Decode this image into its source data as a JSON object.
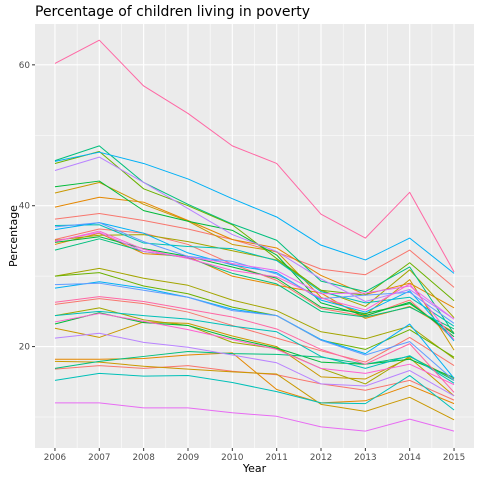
{
  "chart_data": {
    "type": "line",
    "title": "Percentage of children living in poverty",
    "xlabel": "Year",
    "ylabel": "Percentage",
    "x": [
      2006,
      2007,
      2008,
      2009,
      2010,
      2011,
      2012,
      2013,
      2014,
      2015
    ],
    "x_ticks": [
      "2006",
      "2007",
      "2008",
      "2009",
      "2010",
      "2011",
      "2012",
      "2013",
      "2014",
      "2015"
    ],
    "y_ticks": [
      "20",
      "40",
      "60"
    ],
    "y_tick_values": [
      20,
      40,
      60
    ],
    "ylim": [
      5.6,
      65.8
    ],
    "xlim": [
      2005.55,
      2015.45
    ],
    "grid": true,
    "background": "#ebebeb",
    "grid_color": "#ffffff",
    "series": [
      {
        "color": "#f8766d",
        "values": [
          38.1,
          38.9,
          37.9,
          36.7,
          35.2,
          33.4,
          31.0,
          30.2,
          33.7,
          28.4
        ]
      },
      {
        "color": "#f8766d",
        "values": [
          35.2,
          36.7,
          36.1,
          34.5,
          31.7,
          29.4,
          25.4,
          24.3,
          26.6,
          21.0
        ]
      },
      {
        "color": "#f8766d",
        "values": [
          26.0,
          26.8,
          26.1,
          24.9,
          23.0,
          21.2,
          19.4,
          17.8,
          21.3,
          17.3
        ]
      },
      {
        "color": "#f8766d",
        "values": [
          16.8,
          17.3,
          16.9,
          17.3,
          16.5,
          16.0,
          14.7,
          13.8,
          15.2,
          12.4
        ]
      },
      {
        "color": "#e58700",
        "values": [
          39.8,
          41.2,
          40.5,
          37.9,
          35.2,
          34.0,
          30.1,
          27.4,
          29.0,
          25.5
        ]
      },
      {
        "color": "#e58700",
        "values": [
          34.5,
          36.1,
          33.2,
          32.8,
          30.0,
          28.7,
          27.6,
          24.0,
          25.7,
          22.0
        ]
      },
      {
        "color": "#e58700",
        "values": [
          18.2,
          18.2,
          18.3,
          18.8,
          19.1,
          13.9,
          12.0,
          12.3,
          14.5,
          11.9
        ]
      },
      {
        "color": "#c99800",
        "values": [
          41.8,
          43.3,
          40.2,
          37.8,
          34.5,
          33.5,
          27.0,
          24.5,
          29.5,
          19.5
        ]
      },
      {
        "color": "#c99800",
        "values": [
          22.6,
          21.3,
          23.5,
          23.3,
          21.5,
          20.0,
          15.7,
          15.4,
          18.4,
          13.0
        ]
      },
      {
        "color": "#c99800",
        "values": [
          17.9,
          17.8,
          17.2,
          16.8,
          16.4,
          16.1,
          11.8,
          10.8,
          12.8,
          9.6
        ]
      },
      {
        "color": "#a3a500",
        "values": [
          35.1,
          35.8,
          35.9,
          34.9,
          33.6,
          32.3,
          28.0,
          25.7,
          30.9,
          24.1
        ]
      },
      {
        "color": "#a3a500",
        "values": [
          30.0,
          31.1,
          29.7,
          28.7,
          26.6,
          25.1,
          22.1,
          21.1,
          22.9,
          18.3
        ]
      },
      {
        "color": "#a3a500",
        "values": [
          24.4,
          25.5,
          23.8,
          23.0,
          20.6,
          19.7,
          16.9,
          14.7,
          18.6,
          15.4
        ]
      },
      {
        "color": "#6bb100",
        "values": [
          46.0,
          47.7,
          42.4,
          40.0,
          37.3,
          32.5,
          28.0,
          27.3,
          31.9,
          26.5
        ]
      },
      {
        "color": "#6bb100",
        "values": [
          30.0,
          30.5,
          28.6,
          27.5,
          25.6,
          24.4,
          20.9,
          19.6,
          22.4,
          18.5
        ]
      },
      {
        "color": "#00ba38",
        "values": [
          42.7,
          43.5,
          39.3,
          37.8,
          36.5,
          33.0,
          26.2,
          24.4,
          26.3,
          21.4
        ]
      },
      {
        "color": "#00ba38",
        "values": [
          34.8,
          35.6,
          33.9,
          32.8,
          31.3,
          29.7,
          25.6,
          24.7,
          26.1,
          21.8
        ]
      },
      {
        "color": "#00ba38",
        "values": [
          23.2,
          24.8,
          23.4,
          23.0,
          21.2,
          19.8,
          17.8,
          17.5,
          18.2,
          15.6
        ]
      },
      {
        "color": "#00bf7d",
        "values": [
          46.4,
          48.5,
          43.3,
          40.2,
          37.4,
          35.1,
          29.3,
          27.8,
          31.3,
          21.8
        ]
      },
      {
        "color": "#00bf7d",
        "values": [
          33.7,
          35.3,
          33.5,
          32.6,
          30.4,
          28.9,
          25.0,
          24.2,
          25.6,
          22.5
        ]
      },
      {
        "color": "#00bf7d",
        "values": [
          16.9,
          17.9,
          18.6,
          19.3,
          19.0,
          18.9,
          18.5,
          17.5,
          18.6,
          15.2
        ]
      },
      {
        "color": "#00c0b8",
        "values": [
          37.2,
          37.3,
          34.7,
          34.2,
          33.9,
          32.2,
          27.8,
          26.2,
          27.0,
          22.9
        ]
      },
      {
        "color": "#00c0b8",
        "values": [
          24.4,
          25.0,
          24.4,
          23.9,
          22.9,
          22.1,
          18.6,
          16.9,
          18.7,
          14.8
        ]
      },
      {
        "color": "#00c0b8",
        "values": [
          15.2,
          16.2,
          15.8,
          15.9,
          14.9,
          13.6,
          12.0,
          11.9,
          15.9,
          11.0
        ]
      },
      {
        "color": "#00b0f6",
        "values": [
          46.3,
          47.6,
          46.0,
          43.8,
          41.0,
          38.4,
          34.4,
          32.3,
          35.4,
          30.4
        ]
      },
      {
        "color": "#00b0f6",
        "values": [
          36.6,
          37.6,
          36.1,
          33.3,
          31.6,
          30.5,
          26.6,
          24.9,
          27.9,
          20.8
        ]
      },
      {
        "color": "#00b0f6",
        "values": [
          28.3,
          29.2,
          28.3,
          27.0,
          25.3,
          24.4,
          21.0,
          19.0,
          23.2,
          15.5
        ]
      },
      {
        "color": "#619cff",
        "values": [
          37.0,
          37.6,
          34.9,
          32.8,
          32.1,
          30.3,
          26.8,
          27.3,
          27.7,
          23.3
        ]
      },
      {
        "color": "#619cff",
        "values": [
          28.8,
          29.0,
          28.0,
          27.0,
          25.1,
          24.4,
          20.9,
          18.8,
          20.7,
          15.2
        ]
      },
      {
        "color": "#b983ff",
        "values": [
          45.0,
          46.9,
          43.3,
          39.6,
          35.9,
          33.5,
          29.6,
          26.4,
          28.1,
          23.9
        ]
      },
      {
        "color": "#b983ff",
        "values": [
          21.2,
          21.9,
          20.6,
          19.9,
          18.8,
          17.7,
          14.7,
          14.4,
          16.6,
          13.0
        ]
      },
      {
        "color": "#e76bf3",
        "values": [
          35.0,
          36.2,
          33.5,
          32.7,
          31.8,
          30.8,
          27.5,
          27.6,
          28.6,
          23.9
        ]
      },
      {
        "color": "#e76bf3",
        "values": [
          12.0,
          12.0,
          11.3,
          11.3,
          10.6,
          10.1,
          8.6,
          8.0,
          9.7,
          8.0
        ]
      },
      {
        "color": "#fd61d1",
        "values": [
          34.9,
          36.4,
          33.8,
          32.5,
          30.8,
          29.9,
          26.9,
          25.2,
          28.9,
          21.0
        ]
      },
      {
        "color": "#fd61d1",
        "values": [
          23.5,
          24.7,
          23.6,
          22.4,
          21.0,
          19.6,
          16.9,
          16.2,
          17.5,
          14.6
        ]
      },
      {
        "color": "#ff67a4",
        "values": [
          60.2,
          63.5,
          57.0,
          53.1,
          48.5,
          46.0,
          38.8,
          35.4,
          41.9,
          30.6
        ]
      },
      {
        "color": "#ff67a4",
        "values": [
          26.3,
          27.1,
          26.4,
          25.3,
          24.2,
          22.5,
          19.6,
          17.5,
          20.4,
          13.5
        ]
      }
    ]
  }
}
